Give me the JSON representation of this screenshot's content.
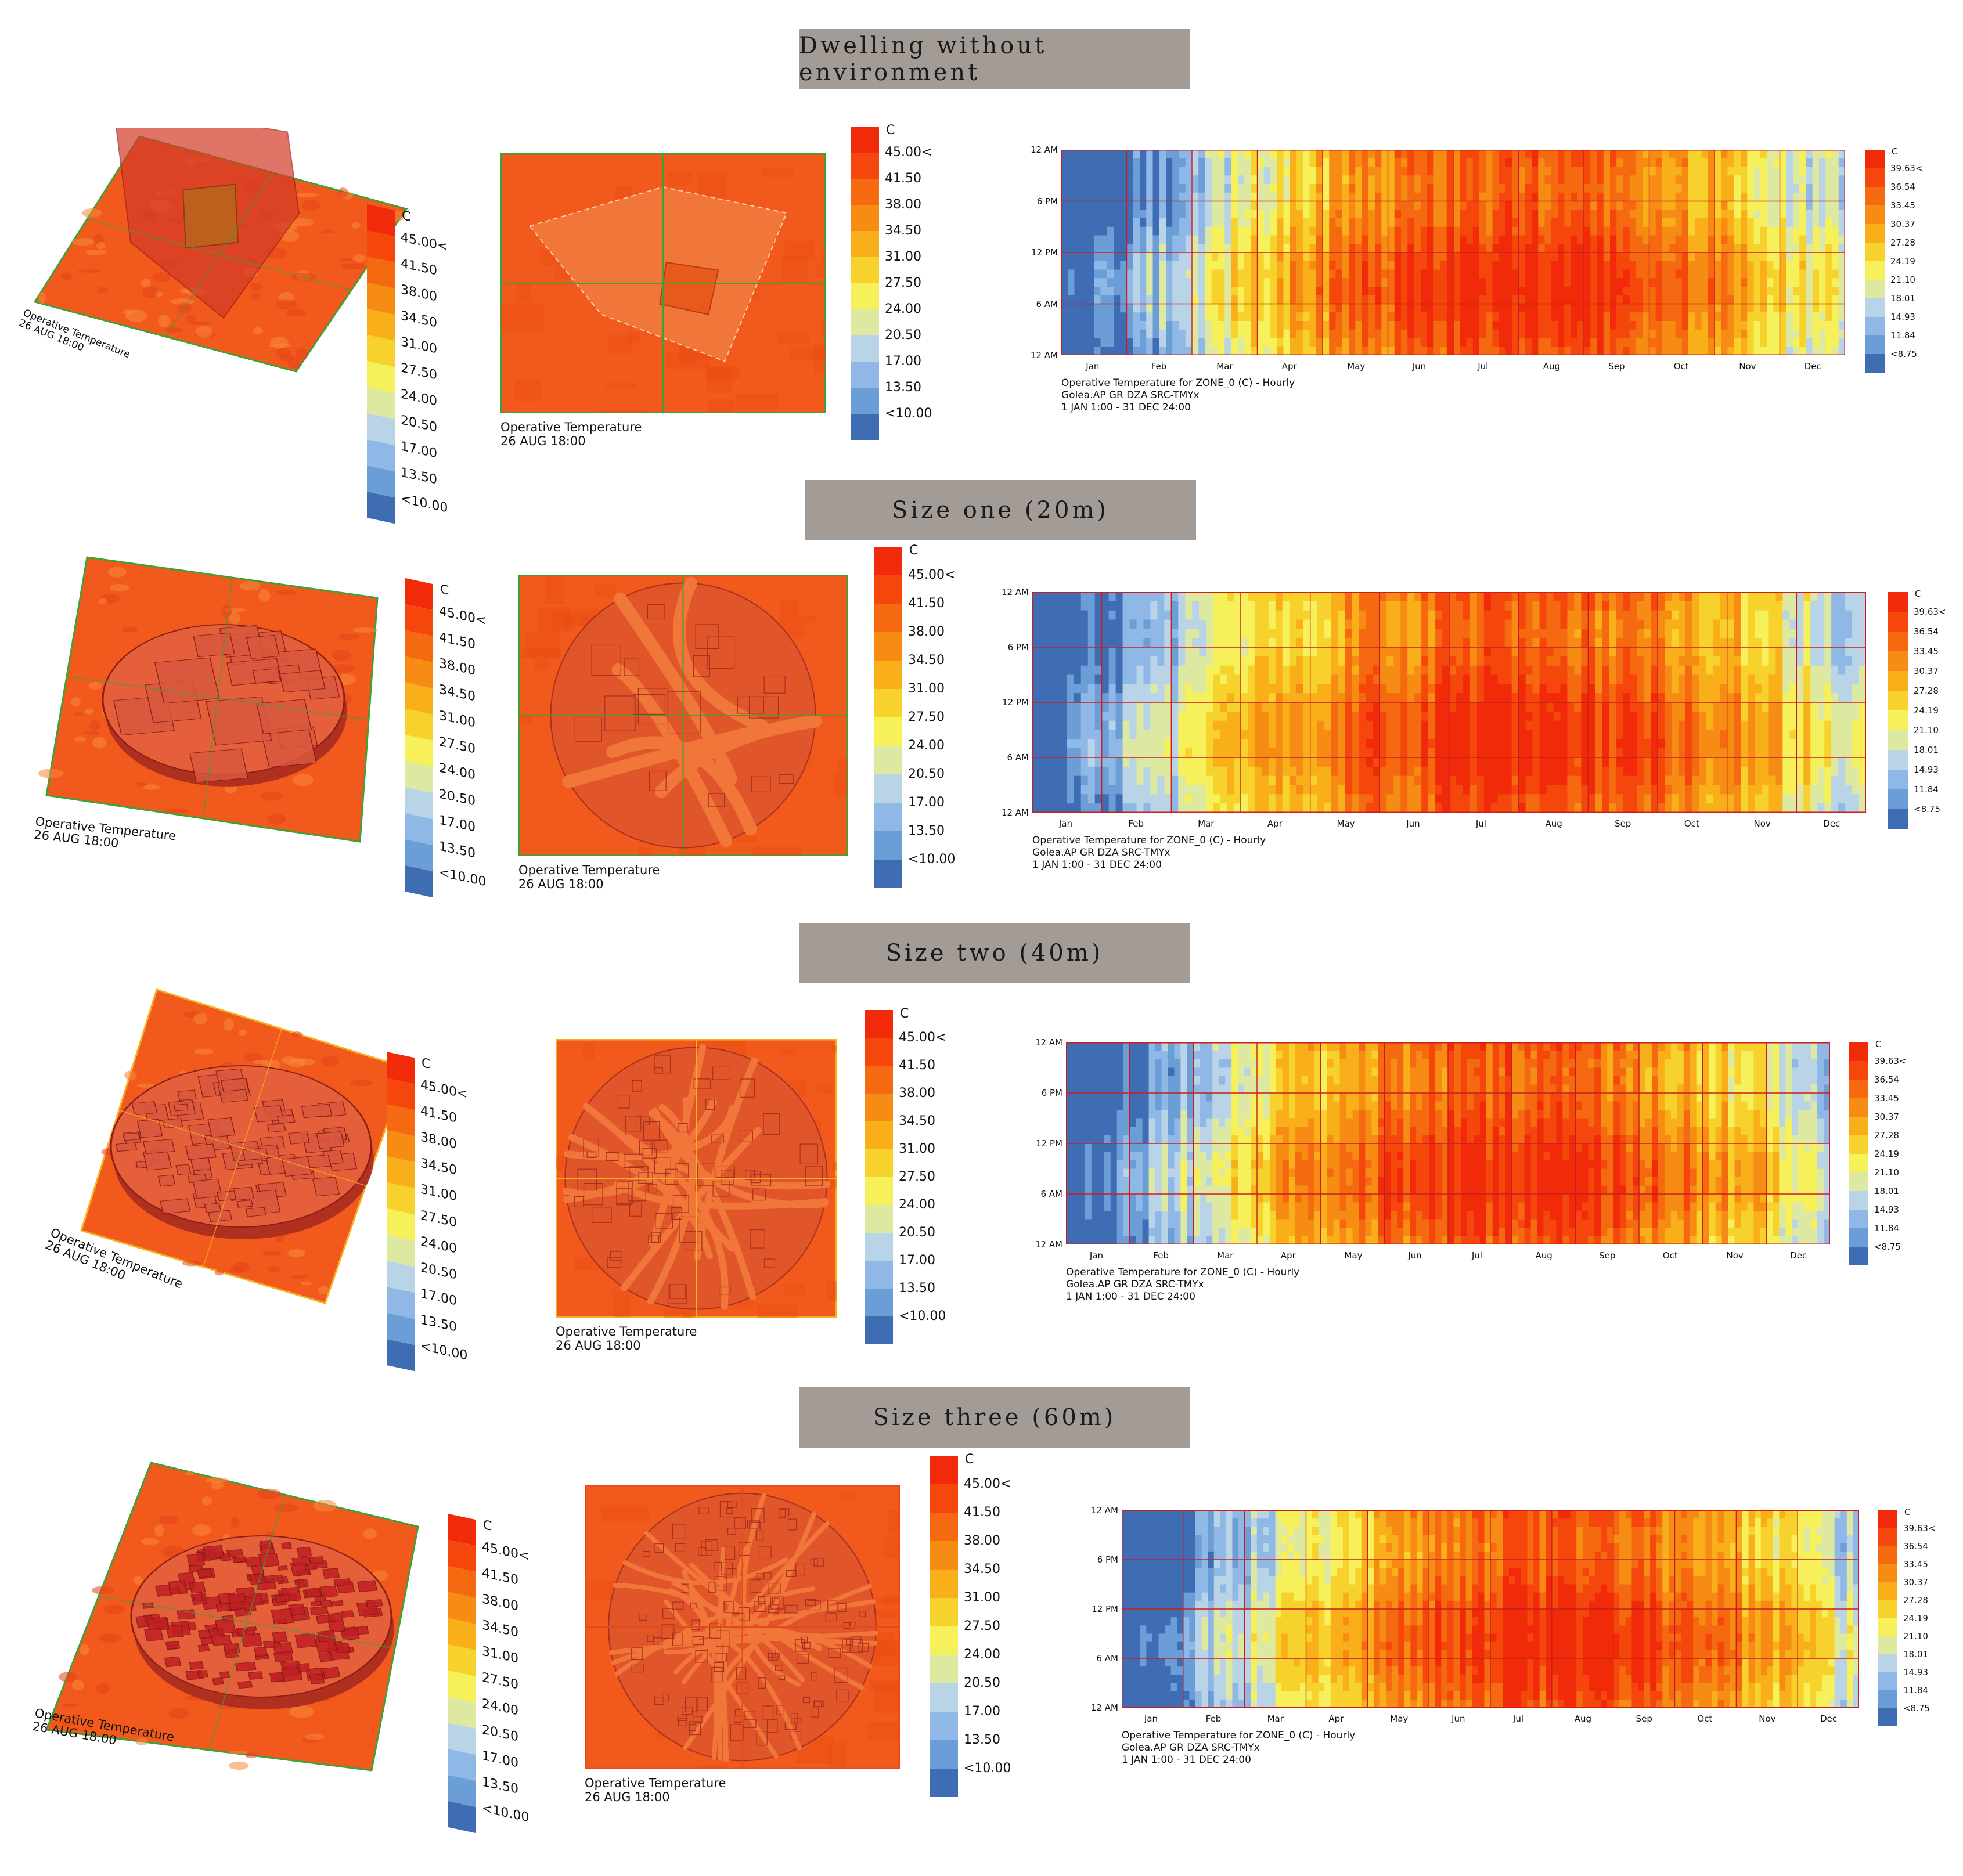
{
  "rows": [
    {
      "title": "Dwelling without environment",
      "density": 0,
      "hm_phase": 0
    },
    {
      "title": "Size one (20m)",
      "density": 1,
      "hm_phase": 1
    },
    {
      "title": "Size two (40m)",
      "density": 2,
      "hm_phase": 2
    },
    {
      "title": "Size three (60m)",
      "density": 3,
      "hm_phase": 3
    }
  ],
  "plan_caption": {
    "line1": "Operative Temperature",
    "line2": "26 AUG 18:00"
  },
  "temp_legend": {
    "unit": "C",
    "labels": [
      "45.00<",
      "41.50",
      "38.00",
      "34.50",
      "31.00",
      "27.50",
      "24.00",
      "20.50",
      "17.00",
      "13.50",
      "<10.00"
    ],
    "colors": [
      "#f12a0a",
      "#f5470c",
      "#f56a10",
      "#f78c14",
      "#f9af1a",
      "#f8d22c",
      "#f6f05a",
      "#dde9a0",
      "#b8d4e6",
      "#8fb8e6",
      "#6b9dd6",
      "#3f6db4"
    ]
  },
  "heatmap": {
    "caption": {
      "line1": "Operative Temperature for ZONE_0 (C) - Hourly",
      "line2": "Golea.AP GR DZA SRC-TMYx",
      "line3": "1 JAN 1:00 - 31 DEC 24:00"
    },
    "months": [
      "Jan",
      "Feb",
      "Mar",
      "Apr",
      "May",
      "Jun",
      "Jul",
      "Aug",
      "Sep",
      "Oct",
      "Nov",
      "Dec"
    ],
    "hours": [
      "12 AM",
      "6 PM",
      "12 PM",
      "6 AM",
      "12 AM"
    ],
    "legend_unit": "C",
    "legend_labels": [
      "39.63<",
      "36.54",
      "33.45",
      "30.37",
      "27.28",
      "24.19",
      "21.10",
      "18.01",
      "14.93",
      "11.84",
      "<8.75"
    ],
    "legend_colors": [
      "#f12a0a",
      "#f5470c",
      "#f56a10",
      "#f78c14",
      "#f9af1a",
      "#f8d22c",
      "#f6f05a",
      "#dde9a0",
      "#b8d4e6",
      "#8fb8e6",
      "#6b9dd6",
      "#3f6db4"
    ]
  },
  "palette": {
    "ground": "#f15a1c",
    "ground_dark": "#e84a12",
    "building": "#c93a2e",
    "frame": "#3fa037",
    "grid_line": "#c81e1e"
  }
}
